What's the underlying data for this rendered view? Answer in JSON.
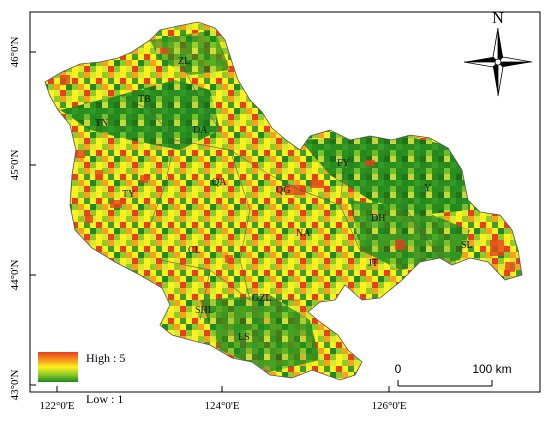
{
  "map": {
    "lat_labels": [
      "46°0'N",
      "45°0'N",
      "44°0'N",
      "43°0'N"
    ],
    "lon_labels": [
      "122°0'E",
      "124°0'E",
      "126°0'E"
    ],
    "counties": [
      {
        "label": "ZL"
      },
      {
        "label": "TB"
      },
      {
        "label": "TN"
      },
      {
        "label": "DA"
      },
      {
        "label": "TY"
      },
      {
        "label": "QA"
      },
      {
        "label": "QG"
      },
      {
        "label": "FY"
      },
      {
        "label": "Y"
      },
      {
        "label": "DH"
      },
      {
        "label": "NA"
      },
      {
        "label": "CL"
      },
      {
        "label": "JT"
      },
      {
        "label": "SL"
      },
      {
        "label": "GZL"
      },
      {
        "label": "SHL"
      },
      {
        "label": "LS"
      }
    ],
    "legend": {
      "high_label": "High : 5",
      "low_label": "Low : 1",
      "colors": [
        "#e8401c",
        "#f6a21e",
        "#fff21c",
        "#8fcb28",
        "#1f8a1f"
      ]
    },
    "scale_bar": {
      "start_label": "0",
      "end_label": "100 km"
    },
    "north_arrow": {
      "label": "N"
    },
    "colors": {
      "frame": "#000000",
      "boundary": "#555555"
    }
  }
}
